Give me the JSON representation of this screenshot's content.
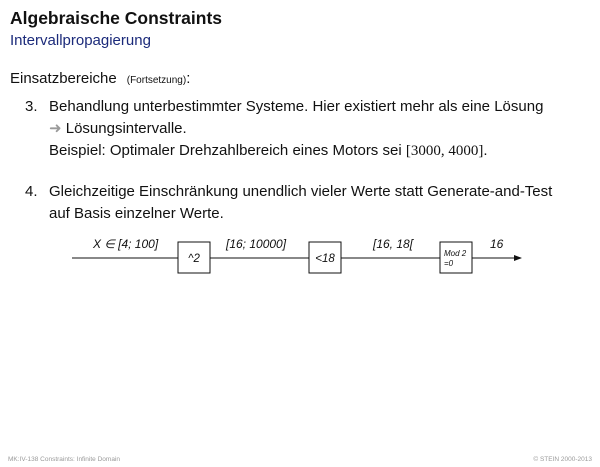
{
  "header": {
    "title": "Algebraische Constraints",
    "subtitle": "Intervallpropagierung"
  },
  "intro": {
    "label": "Einsatzbereiche",
    "paren": "(Fortsetzung)",
    "colon": ":"
  },
  "items": [
    {
      "number": "3.",
      "line1": "Behandlung unterbestimmter Systeme. Hier existiert mehr als eine Lösung",
      "arrow": "➜",
      "line2": "Lösungsintervalle.",
      "line3_prefix": "Beispiel: Optimaler Drehzahlbereich eines Motors sei ",
      "line3_math": "[3000, 4000]",
      "line3_suffix": "."
    },
    {
      "number": "4.",
      "line1": "Gleichzeitige Einschränkung unendlich vieler Werte statt Generate-and-Test",
      "line2": "auf Basis einzelner Werte."
    }
  ],
  "diagram": {
    "labels": [
      "X ∈  [4; 100]",
      "[16; 10000]",
      "[16, 18[",
      "16"
    ],
    "boxes": [
      {
        "lines": [
          "^2"
        ]
      },
      {
        "lines": [
          "<18"
        ]
      },
      {
        "lines": [
          "Mod 2",
          "=0"
        ]
      }
    ]
  },
  "footer": {
    "left": "MK:IV-138   Constraints: Infinite Domain",
    "right": "© STEIN 2000-2013"
  }
}
